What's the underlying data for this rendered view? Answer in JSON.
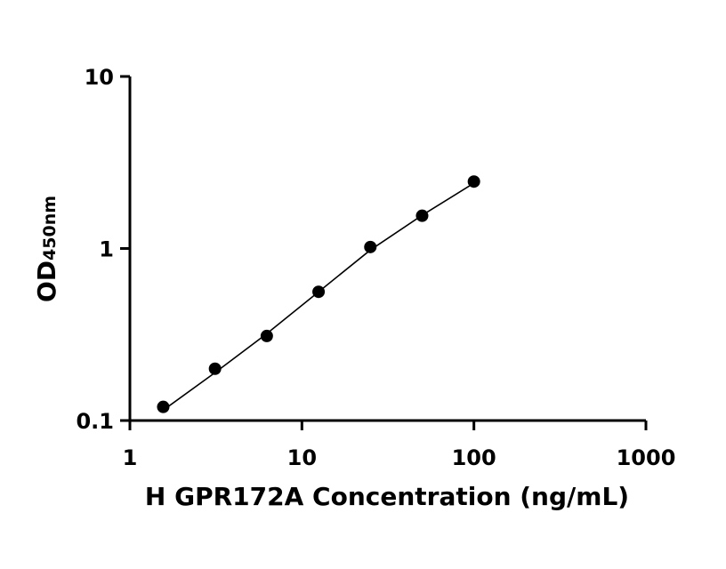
{
  "chart_data": {
    "type": "scatter",
    "xlabel": "H GPR172A Concentration (ng/mL)",
    "ylabel": {
      "main": "OD",
      "subscript": "450nm"
    },
    "xscale": "log",
    "yscale": "log",
    "xlim": [
      1,
      1000
    ],
    "ylim": [
      0.1,
      10
    ],
    "x_ticks": [
      1,
      10,
      100,
      1000
    ],
    "x_tick_labels": [
      "1",
      "10",
      "100",
      "1000"
    ],
    "y_ticks": [
      0.1,
      1,
      10
    ],
    "y_tick_labels": [
      "0.1",
      "1",
      "10"
    ],
    "grid": false,
    "legend": "none",
    "series": [
      {
        "x": [
          1.5625,
          3.125,
          6.25,
          12.5,
          25,
          50,
          100
        ],
        "y": [
          0.12,
          0.2,
          0.31,
          0.56,
          1.02,
          1.55,
          2.45
        ]
      }
    ],
    "fit_curve": {
      "x": [
        1.5625,
        3.125,
        6.25,
        12.5,
        25,
        50,
        100
      ],
      "y": [
        0.115,
        0.19,
        0.32,
        0.56,
        0.98,
        1.56,
        2.4
      ]
    },
    "colors": {
      "marker": "#000000",
      "line": "#000000",
      "axis": "#000000"
    }
  }
}
